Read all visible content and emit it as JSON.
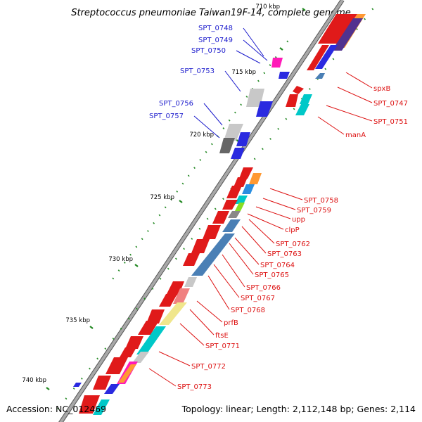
{
  "title": "Streptococcus pneumoniae Taiwan19F-14, complete genome",
  "accession": "Accession: NC_012469",
  "topology": "Topology: linear; Length: 2,112,148 bp; Genes: 2,114",
  "scale_labels": [
    "710 kbp",
    "715 kbp",
    "720 kbp",
    "725 kbp",
    "730 kbp",
    "735 kbp",
    "740 kbp"
  ],
  "colors": {
    "backbone": "#a8a8a8",
    "forward_labels": "#1a1acc",
    "reverse_labels": "#dd1111",
    "tick": "#228822"
  },
  "forward_gene_labels": [
    "SPT_0748",
    "SPT_0749",
    "SPT_0750",
    "SPT_0753",
    "SPT_0756",
    "SPT_0757"
  ],
  "reverse_gene_labels": [
    "spxB",
    "SPT_0747",
    "SPT_0751",
    "manA",
    "SPT_0758",
    "SPT_0759",
    "upp",
    "clpP",
    "SPT_0762",
    "SPT_0763",
    "SPT_0764",
    "SPT_0765",
    "SPT_0766",
    "SPT_0767",
    "SPT_0768",
    "prfB",
    "ftsE",
    "SPT_0771",
    "SPT_0772",
    "SPT_0773"
  ]
}
